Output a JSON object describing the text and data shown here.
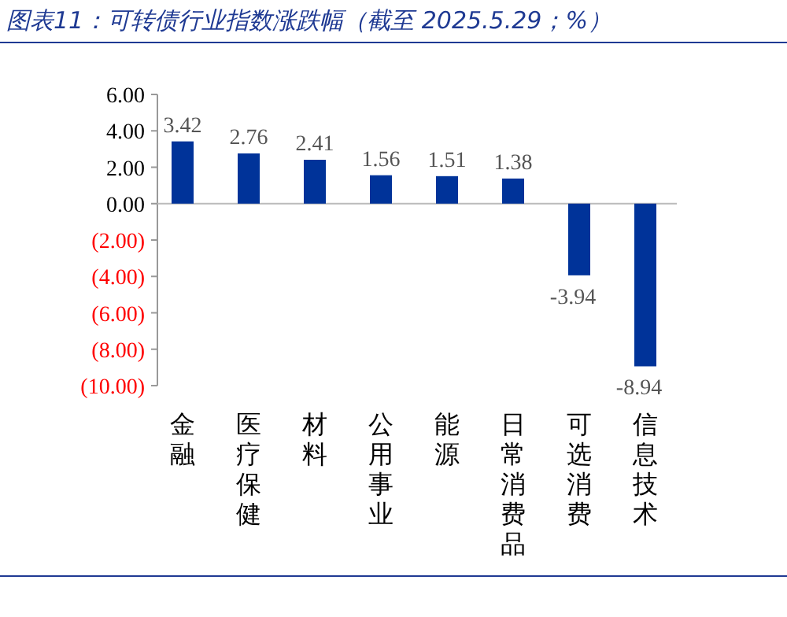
{
  "chart_data": {
    "type": "bar",
    "title": "图表11：可转债行业指数涨跌幅（截至 2025.5.29；%）",
    "categories": [
      "金融",
      "医疗保健",
      "材料",
      "公用事业",
      "能源",
      "日常消费品",
      "可选消费",
      "信息技术"
    ],
    "values": [
      3.42,
      2.76,
      2.41,
      1.56,
      1.51,
      1.38,
      -3.94,
      -8.94
    ],
    "color": "#003399",
    "ylim": [
      -10,
      6
    ],
    "yticks": [
      {
        "value": 6,
        "label": "6.00"
      },
      {
        "value": 4,
        "label": "4.00"
      },
      {
        "value": 2,
        "label": "2.00"
      },
      {
        "value": 0,
        "label": "0.00"
      },
      {
        "value": -2,
        "label": "(2.00)"
      },
      {
        "value": -4,
        "label": "(4.00)"
      },
      {
        "value": -6,
        "label": "(6.00)"
      },
      {
        "value": -8,
        "label": "(8.00)"
      },
      {
        "value": -10,
        "label": "(10.00)"
      }
    ],
    "data_labels": true
  }
}
